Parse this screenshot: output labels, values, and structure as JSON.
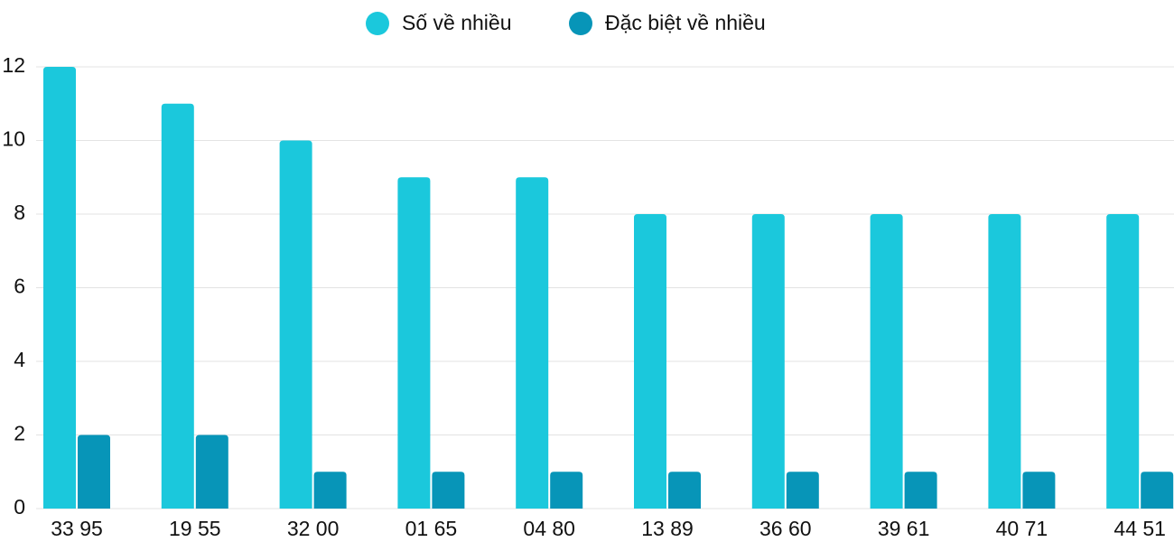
{
  "chart_data": {
    "type": "bar",
    "categories": [
      "33 95",
      "19 55",
      "32 00",
      "01 65",
      "04 80",
      "13 89",
      "36 60",
      "39 61",
      "40 71",
      "44 51"
    ],
    "series": [
      {
        "name": "Số về nhiều",
        "color": "#1bc8dc",
        "values": [
          12,
          11,
          10,
          9,
          9,
          8,
          8,
          8,
          8,
          8
        ]
      },
      {
        "name": "Đặc biệt về nhiều",
        "color": "#0795b8",
        "values": [
          2,
          2,
          1,
          1,
          1,
          1,
          1,
          1,
          1,
          1
        ]
      }
    ],
    "ylim": [
      0,
      12
    ],
    "yticks": [
      0,
      2,
      4,
      6,
      8,
      10,
      12
    ],
    "grid": true,
    "legend": "top"
  }
}
